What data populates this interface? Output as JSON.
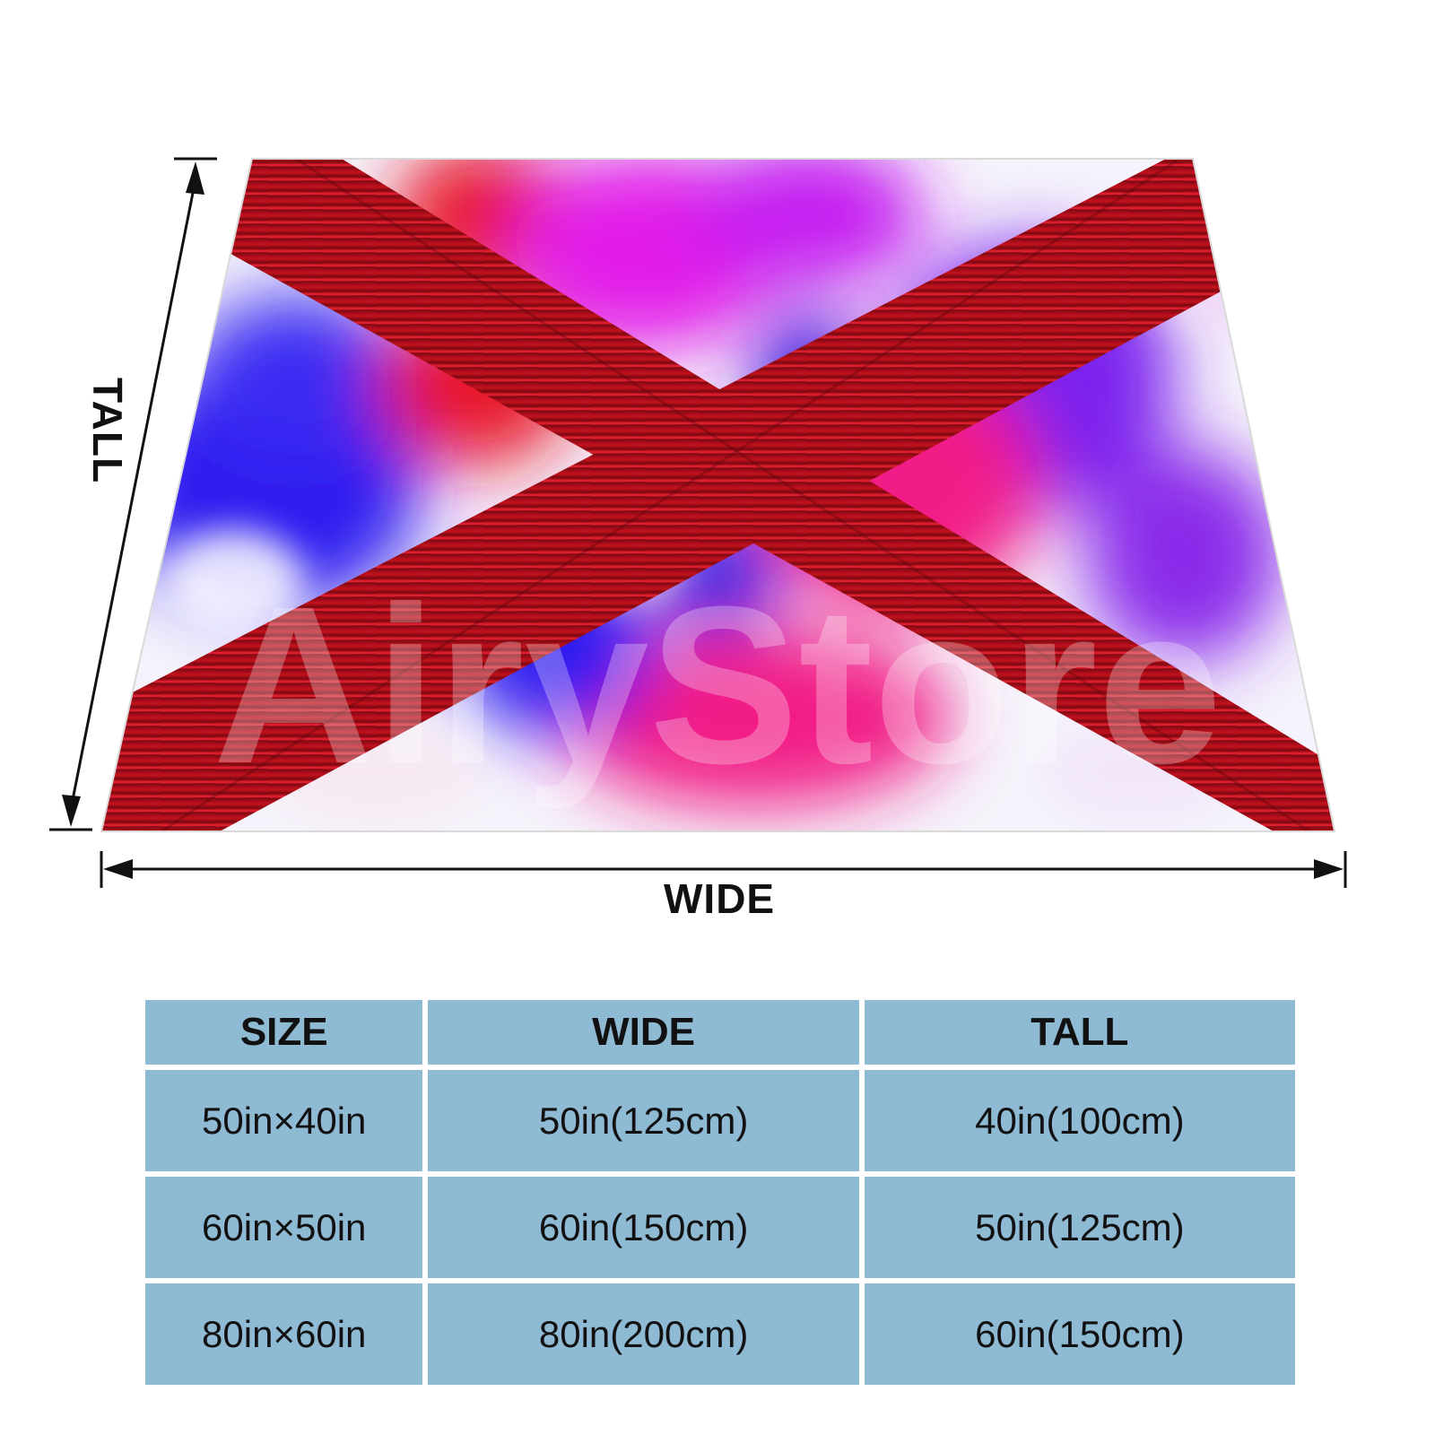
{
  "diagram": {
    "wide_label": "WIDE",
    "tall_label": "TALL",
    "watermark_text": "AiryStore"
  },
  "colors": {
    "cross": "#b3101a",
    "blue": "#2f1ff0",
    "magenta": "#e21ee8",
    "pink": "#f21f86",
    "red": "#e8162c",
    "violet": "#7b22ee",
    "table_cell": "#8fbad3"
  },
  "size_table": {
    "headers": [
      "SIZE",
      "WIDE",
      "TALL"
    ],
    "rows": [
      [
        "50in×40in",
        "50in(125cm)",
        "40in(100cm)"
      ],
      [
        "60in×50in",
        "60in(150cm)",
        "50in(125cm)"
      ],
      [
        "80in×60in",
        "80in(200cm)",
        "60in(150cm)"
      ]
    ]
  }
}
